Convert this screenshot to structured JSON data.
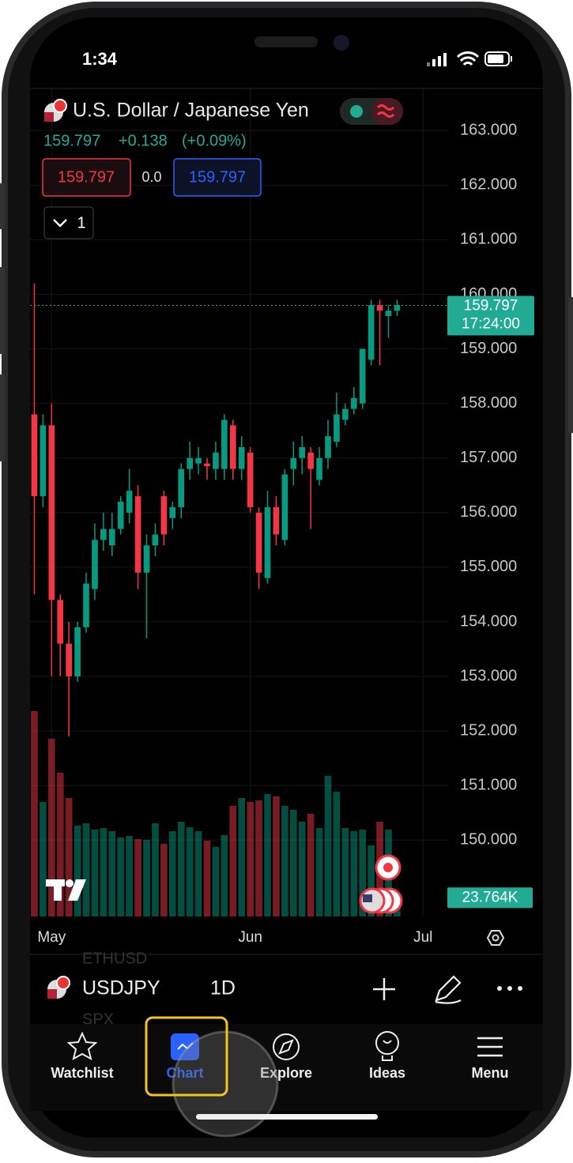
{
  "status_bar": {
    "time": "1:34"
  },
  "header": {
    "title": "U.S. Dollar / Japanese Yen",
    "price": "159.797",
    "change": "+0.138",
    "change_percent": "(+0.09%)",
    "sell_price": "159.797",
    "spread": "0.0",
    "buy_price": "159.797",
    "quantity": "1"
  },
  "chart_data": {
    "type": "candlestick",
    "open": [
      157.8,
      156.3,
      157.6,
      154.4,
      153.6,
      153.0,
      153.9,
      154.6,
      155.5,
      155.4,
      155.7,
      156.0,
      156.3,
      154.9,
      155.4,
      156.3,
      155.9,
      156.1,
      156.8,
      156.9,
      156.9,
      156.8,
      156.8,
      157.6,
      156.8,
      157.1,
      156.0,
      154.8,
      156.1,
      155.5,
      156.8,
      157.0,
      157.1,
      156.6,
      157.0,
      157.3,
      157.7,
      157.9,
      158.0,
      158.8,
      159.8,
      159.6,
      159.7
    ],
    "high": [
      160.2,
      157.8,
      158.0,
      154.5,
      154.0,
      154.0,
      154.9,
      155.8,
      156.0,
      156.0,
      156.3,
      156.8,
      156.5,
      155.6,
      155.8,
      156.4,
      156.2,
      156.9,
      157.3,
      157.2,
      157.0,
      157.3,
      157.8,
      157.7,
      157.4,
      157.2,
      156.1,
      156.4,
      156.3,
      156.8,
      157.3,
      157.4,
      157.2,
      157.2,
      157.7,
      158.2,
      158.0,
      158.3,
      159.0,
      159.9,
      159.9,
      159.8,
      159.9
    ],
    "low": [
      154.5,
      156.1,
      153.0,
      153.0,
      151.9,
      152.9,
      153.8,
      154.4,
      155.3,
      155.2,
      155.6,
      155.8,
      154.6,
      153.7,
      155.2,
      155.4,
      155.7,
      155.9,
      156.6,
      156.7,
      156.6,
      156.6,
      156.6,
      156.6,
      156.6,
      156.0,
      154.6,
      154.7,
      155.4,
      155.4,
      156.5,
      156.7,
      155.7,
      156.5,
      156.8,
      157.2,
      157.6,
      157.8,
      157.9,
      158.7,
      158.7,
      159.2,
      159.6
    ],
    "close": [
      156.3,
      157.6,
      154.4,
      153.6,
      153.0,
      153.9,
      154.7,
      155.5,
      155.7,
      155.7,
      156.2,
      156.4,
      154.9,
      155.4,
      155.6,
      155.6,
      156.1,
      156.8,
      157.0,
      157.0,
      156.85,
      157.1,
      157.7,
      156.8,
      157.2,
      156.1,
      154.9,
      156.1,
      155.6,
      156.7,
      157.0,
      157.2,
      156.8,
      157.0,
      157.4,
      157.8,
      157.9,
      158.1,
      159.0,
      159.8,
      159.7,
      159.7,
      159.8
    ],
    "volume": [
      260,
      145,
      225,
      182,
      150,
      115,
      118,
      110,
      112,
      108,
      100,
      102,
      98,
      97,
      118,
      92,
      108,
      120,
      113,
      108,
      96,
      88,
      103,
      140,
      150,
      145,
      147,
      155,
      152,
      140,
      135,
      120,
      130,
      112,
      178,
      158,
      112,
      108,
      110,
      90,
      120,
      110,
      23.764
    ],
    "up_color": "#089981",
    "down_color": "#f23645",
    "ylim": [
      148.6,
      163.8
    ],
    "volume_ylim": [
      0,
      300
    ],
    "yticks": [
      {
        "value": 150,
        "label": "150.000"
      },
      {
        "value": 151,
        "label": "151.000"
      },
      {
        "value": 152,
        "label": "152.000"
      },
      {
        "value": 153,
        "label": "153.000"
      },
      {
        "value": 154,
        "label": "154.000"
      },
      {
        "value": 155,
        "label": "155.000"
      },
      {
        "value": 156,
        "label": "156.000"
      },
      {
        "value": 157,
        "label": "157.000"
      },
      {
        "value": 158,
        "label": "158.000"
      },
      {
        "value": 159,
        "label": "159.000"
      },
      {
        "value": 160,
        "label": "160.000"
      },
      {
        "value": 161,
        "label": "161.000"
      },
      {
        "value": 162,
        "label": "162.000"
      },
      {
        "value": 163,
        "label": "163.000"
      }
    ],
    "xlim": [
      -0.5,
      48
    ],
    "xticks": [
      {
        "value": 2,
        "label": "May"
      },
      {
        "value": 25,
        "label": "Jun"
      },
      {
        "value": 45,
        "label": "Jul"
      }
    ],
    "last_price": 159.797,
    "last_price_time": "17:24:00",
    "volume_label": "23.764K",
    "grid": true
  },
  "toolbar": {
    "symbol": "USDJPY",
    "interval": "1D",
    "ghost_symbols": [
      "ETHUSD",
      "SPX"
    ]
  },
  "tabs": [
    "Watchlist",
    "Chart",
    "Explore",
    "Ideas",
    "Menu"
  ]
}
